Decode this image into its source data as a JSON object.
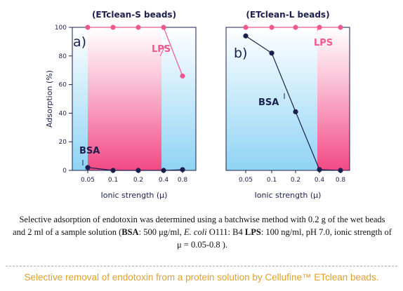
{
  "colors": {
    "lps": "#f0588e",
    "bsa": "#1a1f4d",
    "axis": "#1a1f4d",
    "pink_band": "#f0407f",
    "blue_band": "#8fd3f4"
  },
  "chart_data": [
    {
      "type": "line",
      "title": "(ETclean-S beads)",
      "panel_label": "a)",
      "xlabel": "Ionic strength (μ)",
      "ylabel": "Adsorption (%)",
      "categories": [
        "0.05",
        "0.1",
        "0.2",
        "0.4",
        "0.8"
      ],
      "y_ticks": [
        "0",
        "20",
        "40",
        "60",
        "80",
        "100"
      ],
      "ylim": [
        0,
        100
      ],
      "grid": false,
      "series": [
        {
          "name": "LPS",
          "values": [
            100,
            100,
            100,
            100,
            66
          ]
        },
        {
          "name": "BSA",
          "values": [
            2,
            0,
            0,
            0,
            0.5
          ]
        }
      ]
    },
    {
      "type": "line",
      "title": "(ETclean-L beads)",
      "panel_label": "b)",
      "xlabel": "Ionic strength (μ)",
      "ylabel": "",
      "categories": [
        "0.05",
        "0.1",
        "0.2",
        "0.4",
        "0.8"
      ],
      "y_ticks": [],
      "ylim": [
        0,
        100
      ],
      "grid": false,
      "series": [
        {
          "name": "LPS",
          "values": [
            100,
            100,
            100,
            100,
            100
          ]
        },
        {
          "name": "BSA",
          "values": [
            94,
            82,
            41,
            0.5,
            0
          ]
        }
      ]
    }
  ],
  "caption": {
    "part1": "Selective adsorption of endotoxin was determined using a batchwise method with 0.2 g of the wet beads and 2 ml of a sample solution (",
    "bsa_label": "BSA",
    "part2": ": 500 μg/ml, ",
    "species": "E. coli",
    "part3": " O111: B4 ",
    "lps_label": "LPS",
    "part4": ": 100 ng/ml, pH 7.0, ionic strength of μ = 0.05-0.8 )."
  },
  "footer": "Selective removal of endotoxin from a protein solution by Cellufine™ ETclean beads."
}
